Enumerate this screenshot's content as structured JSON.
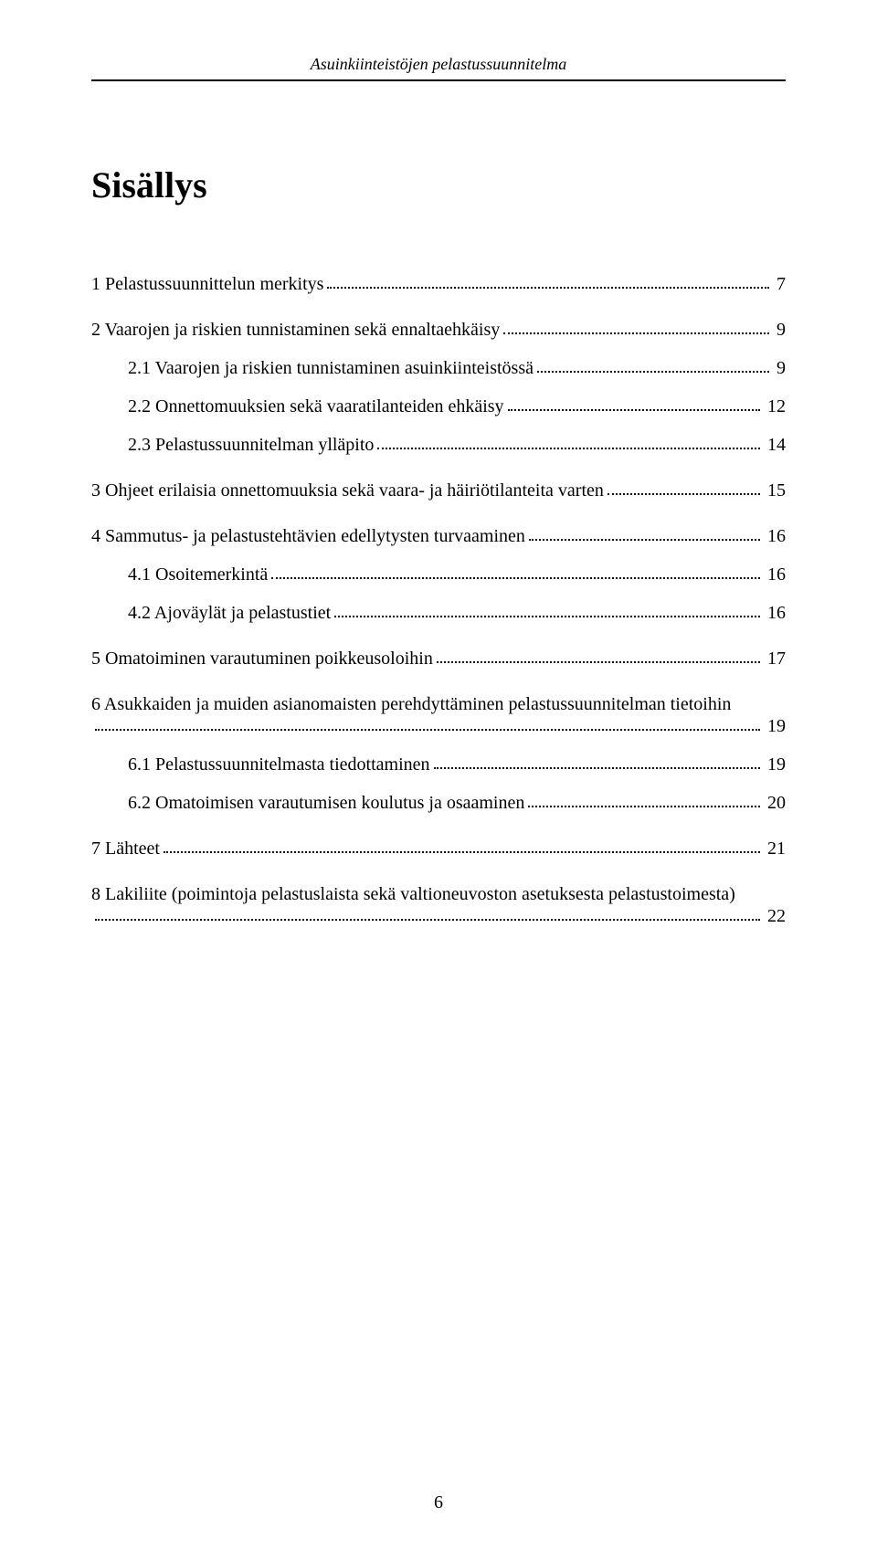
{
  "header": "Asuinkiinteistöjen pelastussuunnitelma",
  "title": "Sisällys",
  "page_number": "6",
  "toc": [
    {
      "group": [
        {
          "label": "1 Pelastussuunnittelun merkitys",
          "page": "7",
          "indent": 0
        }
      ]
    },
    {
      "group": [
        {
          "label": "2 Vaarojen ja riskien tunnistaminen sekä ennaltaehkäisy",
          "page": "9",
          "indent": 0
        },
        {
          "label": "2.1 Vaarojen ja riskien tunnistaminen asuinkiinteistössä",
          "page": "9",
          "indent": 1
        },
        {
          "label": "2.2 Onnettomuuksien sekä vaaratilanteiden ehkäisy",
          "page": "12",
          "indent": 1
        },
        {
          "label": "2.3 Pelastussuunnitelman ylläpito",
          "page": "14",
          "indent": 1
        }
      ]
    },
    {
      "group": [
        {
          "label": "3 Ohjeet erilaisia onnettomuuksia sekä vaara- ja häiriötilanteita varten",
          "page": "15",
          "indent": 0
        }
      ]
    },
    {
      "group": [
        {
          "label": "4 Sammutus- ja pelastustehtävien edellytysten turvaaminen",
          "page": "16",
          "indent": 0
        },
        {
          "label": "4.1 Osoitemerkintä",
          "page": "16",
          "indent": 1
        },
        {
          "label": "4.2 Ajoväylät ja pelastustiet",
          "page": "16",
          "indent": 1
        }
      ]
    },
    {
      "group": [
        {
          "label": "5 Omatoiminen varautuminen poikkeusoloihin",
          "page": "17",
          "indent": 0
        }
      ]
    },
    {
      "group": [
        {
          "label_line1": "6 Asukkaiden ja muiden asianomaisten perehdyttäminen pelastussuunnitelman tietoihin",
          "label_line2": "",
          "page": "19",
          "indent": 0,
          "multiline": true
        },
        {
          "label": "6.1 Pelastussuunnitelmasta tiedottaminen",
          "page": "19",
          "indent": 1
        },
        {
          "label": "6.2 Omatoimisen varautumisen koulutus ja osaaminen",
          "page": "20",
          "indent": 1
        }
      ]
    },
    {
      "group": [
        {
          "label": "7 Lähteet",
          "page": "21",
          "indent": 0
        }
      ]
    },
    {
      "group": [
        {
          "label_line1": "8 Lakiliite (poimintoja pelastuslaista sekä valtioneuvoston asetuksesta pelastustoimesta)",
          "label_line2": "",
          "page": "22",
          "indent": 0,
          "multiline": true
        }
      ]
    }
  ]
}
